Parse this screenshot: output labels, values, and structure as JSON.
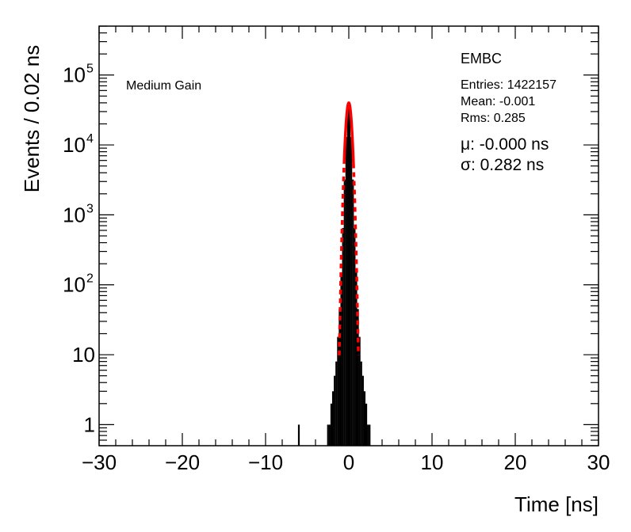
{
  "chart_data": {
    "type": "histogram",
    "xlabel": "Time [ns]",
    "ylabel": "Events / 0.02 ns",
    "xlim": [
      -30,
      30
    ],
    "ylim": [
      0.5,
      500000
    ],
    "yscale": "log",
    "x_ticks": [
      {
        "value": -30,
        "label": "−30"
      },
      {
        "value": -20,
        "label": "−20"
      },
      {
        "value": -10,
        "label": "−10"
      },
      {
        "value": 0,
        "label": "0"
      },
      {
        "value": 10,
        "label": "10"
      },
      {
        "value": 20,
        "label": "20"
      },
      {
        "value": 30,
        "label": "30"
      }
    ],
    "y_ticks": [
      {
        "value": 1,
        "base": "1",
        "exp": ""
      },
      {
        "value": 10,
        "base": "10",
        "exp": ""
      },
      {
        "value": 100,
        "base": "10",
        "exp": "2"
      },
      {
        "value": 1000,
        "base": "10",
        "exp": "3"
      },
      {
        "value": 10000,
        "base": "10",
        "exp": "4"
      },
      {
        "value": 100000,
        "base": "10",
        "exp": "5"
      }
    ],
    "gain_label": "Medium Gain",
    "stats": {
      "title": "EMBC",
      "entries": "Entries: 1422157",
      "mean": "Mean: -0.001",
      "rms": "Rms: 0.285"
    },
    "fit": {
      "mu_label": "μ: -0.000 ns",
      "sigma_label": "σ: 0.282 ns",
      "mu": 0.0,
      "sigma": 0.282,
      "amplitude": 40000,
      "color": "#ff0000"
    },
    "series": [
      {
        "style": "histogram",
        "color": "#000000",
        "points": [
          {
            "x": -6.0,
            "y": 1
          },
          {
            "x": -2.5,
            "y": 1
          },
          {
            "x": -2.3,
            "y": 1
          },
          {
            "x": -2.1,
            "y": 2
          },
          {
            "x": -1.9,
            "y": 3
          },
          {
            "x": -1.7,
            "y": 5
          },
          {
            "x": -1.5,
            "y": 8
          },
          {
            "x": -1.3,
            "y": 18
          },
          {
            "x": -1.1,
            "y": 45
          },
          {
            "x": -0.9,
            "y": 150
          },
          {
            "x": -0.7,
            "y": 650
          },
          {
            "x": -0.5,
            "y": 3200
          },
          {
            "x": -0.3,
            "y": 13000
          },
          {
            "x": -0.1,
            "y": 33000
          },
          {
            "x": 0.0,
            "y": 40000
          },
          {
            "x": 0.1,
            "y": 33000
          },
          {
            "x": 0.3,
            "y": 13000
          },
          {
            "x": 0.5,
            "y": 3200
          },
          {
            "x": 0.7,
            "y": 650
          },
          {
            "x": 0.9,
            "y": 150
          },
          {
            "x": 1.1,
            "y": 45
          },
          {
            "x": 1.3,
            "y": 18
          },
          {
            "x": 1.5,
            "y": 8
          },
          {
            "x": 1.7,
            "y": 5
          },
          {
            "x": 1.9,
            "y": 3
          },
          {
            "x": 2.1,
            "y": 2
          },
          {
            "x": 2.3,
            "y": 1
          },
          {
            "x": 2.5,
            "y": 1
          }
        ]
      }
    ]
  }
}
